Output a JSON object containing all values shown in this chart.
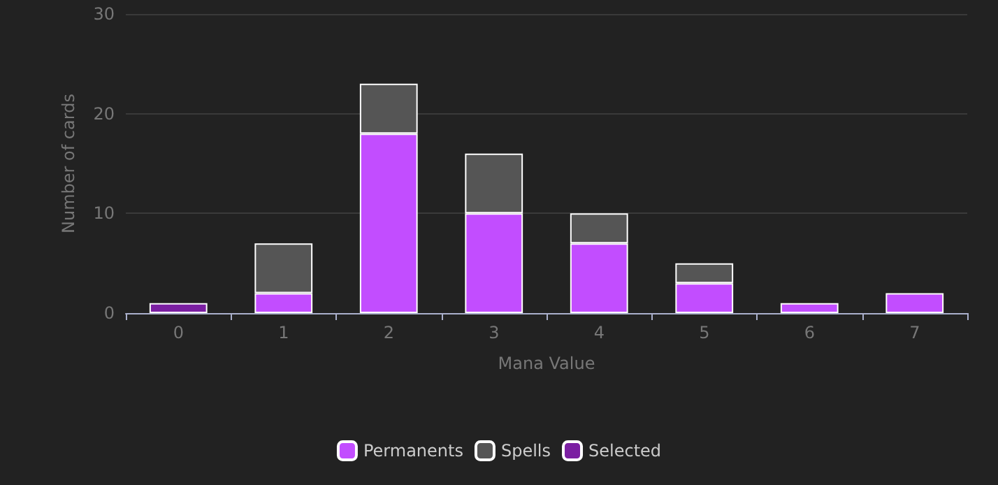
{
  "chart_data": {
    "type": "bar",
    "stacked": true,
    "xlabel": "Mana Value",
    "ylabel": "Number of cards",
    "categories": [
      "0",
      "1",
      "2",
      "3",
      "4",
      "5",
      "6",
      "7"
    ],
    "series": [
      {
        "name": "Permanents",
        "color": "#c24dff",
        "values": [
          0,
          2,
          18,
          10,
          7,
          3,
          1,
          2
        ]
      },
      {
        "name": "Spells",
        "color": "#555555",
        "values": [
          0,
          5,
          5,
          6,
          3,
          2,
          0,
          0
        ]
      },
      {
        "name": "Selected",
        "color": "#7b1fa2",
        "values": [
          1,
          0,
          0,
          0,
          0,
          0,
          0,
          0
        ]
      }
    ],
    "ylim": [
      0,
      30
    ],
    "yticks": [
      0,
      10,
      20,
      30
    ],
    "grid": "y",
    "legend": "bottom"
  }
}
